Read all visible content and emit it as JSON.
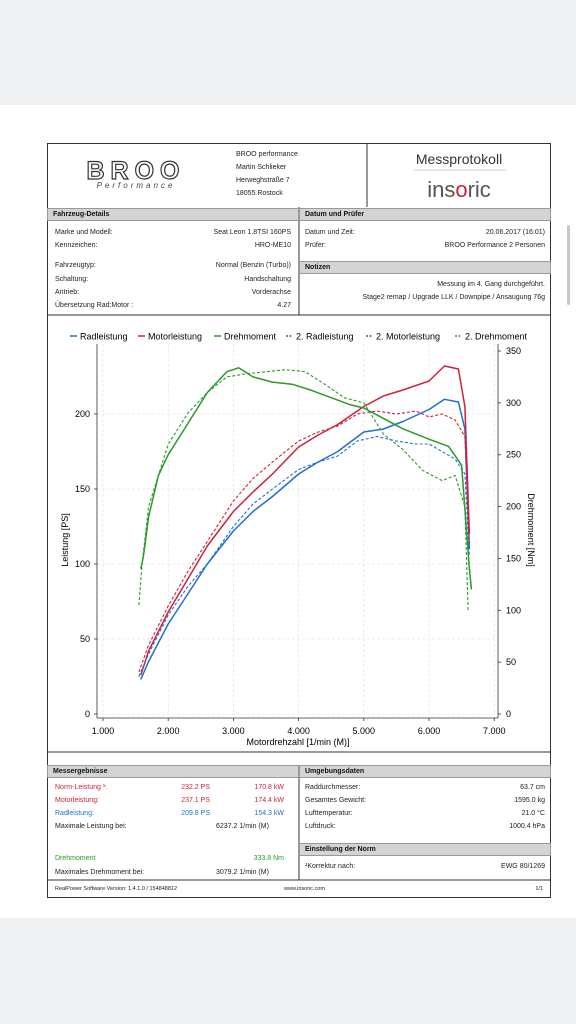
{
  "header": {
    "logo": "BROO",
    "logo_sub": "Performance",
    "address": [
      "BROO performance",
      "Martin Schlieker",
      "Herweghstraße 7",
      "18055 Rostock"
    ],
    "title": "Messprotokoll",
    "brand": [
      "ins",
      "o",
      "ric"
    ]
  },
  "vehicle": {
    "title": "Fahrzeug-Details",
    "rows": [
      [
        "Marke und Modell:",
        "Seat Leon 1.8TSI 160PS"
      ],
      [
        "Kennzeichen:",
        "HRO-ME10"
      ],
      [
        "Fahrzeugtyp:",
        "Normal (Benzin (Turbo))"
      ],
      [
        "Schaltung:",
        "Handschaltung"
      ],
      [
        "Antrieb:",
        "Vorderachse"
      ],
      [
        "Übersetzung Rad:Motor :",
        "4.27"
      ]
    ]
  },
  "test": {
    "title": "Datum und Prüfer",
    "rows": [
      [
        "Datum und Zeit:",
        "20.06.2017 (16:01)"
      ],
      [
        "Prüfer:",
        "BROO Performance 2 Personen"
      ]
    ]
  },
  "notes": {
    "title": "Notizen",
    "lines": [
      "Messung im 4. Gang durchgeführt.",
      "Stage2 remap / Upgrade LLK / Downpipe / Ansaugung 76g"
    ]
  },
  "chart_data": {
    "type": "line",
    "xlabel": "Motordrehzahl [1/min (M)]",
    "ylabel": "Leistung [PS]",
    "y2label": "Drehmoment [Nm]",
    "xlim": [
      908,
      7058
    ],
    "ylim": [
      0,
      242
    ],
    "y2lim": [
      0,
      350
    ],
    "xticks": [
      {
        "value": 1000,
        "label": "1.000"
      },
      {
        "value": 2000,
        "label": "2.000"
      },
      {
        "value": 3000,
        "label": "3.000"
      },
      {
        "value": 4000,
        "label": "4.000"
      },
      {
        "value": 5000,
        "label": "5.000"
      },
      {
        "value": 6000,
        "label": "6.000"
      },
      {
        "value": 7000,
        "label": "7.000"
      }
    ],
    "yticks": [
      0,
      50,
      100,
      150,
      200
    ],
    "y2ticks": [
      0,
      50,
      100,
      150,
      200,
      250,
      300,
      350
    ],
    "grid": true,
    "series": [
      {
        "name": "Radleistung",
        "color": "#1f6fd0",
        "dashed": false,
        "axis": "y",
        "x": [
          1580,
          1700,
          2000,
          2300,
          2600,
          3000,
          3300,
          3600,
          4000,
          4300,
          4600,
          5000,
          5300,
          5600,
          6000,
          6237,
          6450,
          6550,
          6620
        ],
        "values": [
          23,
          35,
          60,
          80,
          100,
          122,
          135,
          145,
          160,
          168,
          175,
          188,
          190,
          195,
          203,
          209.8,
          208,
          190,
          110
        ]
      },
      {
        "name": "Motorleistung",
        "color": "#d0213a",
        "dashed": false,
        "axis": "y",
        "x": [
          1580,
          1700,
          2000,
          2300,
          2600,
          3000,
          3300,
          3600,
          4000,
          4300,
          4600,
          5000,
          5300,
          5600,
          6000,
          6237,
          6450,
          6550,
          6620
        ],
        "values": [
          26,
          42,
          68,
          90,
          112,
          135,
          148,
          160,
          178,
          186,
          193,
          205,
          212,
          216,
          222,
          232,
          230,
          205,
          120
        ]
      },
      {
        "name": "Drehmoment",
        "color": "#2a9a2a",
        "dashed": false,
        "axis": "y2",
        "x": [
          1580,
          1620,
          1700,
          1850,
          2000,
          2300,
          2600,
          2900,
          3079,
          3300,
          3600,
          3900,
          4200,
          4500,
          4800,
          5000,
          5300,
          5600,
          6000,
          6300,
          6500,
          6620,
          6650
        ],
        "values": [
          140,
          152,
          190,
          230,
          250,
          280,
          310,
          330,
          333.8,
          325,
          320,
          318,
          312,
          305,
          298,
          295,
          285,
          275,
          265,
          258,
          240,
          140,
          120
        ]
      },
      {
        "name": "2. Radleistung",
        "color": "#1f6fd0",
        "dashed": true,
        "axis": "y",
        "x": [
          1550,
          1700,
          2000,
          2300,
          2600,
          3000,
          3300,
          3600,
          4000,
          4300,
          4600,
          4900,
          5200,
          5500,
          5800,
          6000,
          6200,
          6400,
          6550,
          6620
        ],
        "values": [
          25,
          40,
          66,
          85,
          100,
          125,
          140,
          150,
          163,
          168,
          172,
          182,
          185,
          182,
          180,
          180,
          175,
          170,
          160,
          105
        ]
      },
      {
        "name": "2. Motorleistung",
        "color": "#d0213a",
        "dashed": true,
        "axis": "y",
        "x": [
          1550,
          1700,
          2000,
          2300,
          2600,
          3000,
          3300,
          3600,
          4000,
          4300,
          4600,
          4900,
          5200,
          5500,
          5800,
          6000,
          6200,
          6400,
          6550,
          6620
        ],
        "values": [
          28,
          46,
          72,
          95,
          115,
          142,
          157,
          168,
          182,
          188,
          192,
          200,
          202,
          200,
          202,
          198,
          200,
          196,
          185,
          112
        ]
      },
      {
        "name": "2. Drehmoment",
        "color": "#2a9a2a",
        "dashed": true,
        "axis": "y2",
        "x": [
          1550,
          1600,
          1700,
          2000,
          2300,
          2600,
          2900,
          3200,
          3500,
          3800,
          4100,
          4400,
          4700,
          5000,
          5300,
          5600,
          5900,
          6200,
          6400,
          6550,
          6600
        ],
        "values": [
          105,
          145,
          200,
          260,
          290,
          310,
          325,
          328,
          330,
          332,
          330,
          318,
          305,
          300,
          270,
          255,
          235,
          225,
          230,
          200,
          100
        ]
      }
    ]
  },
  "results": {
    "title": "Messergebnisse",
    "rows": [
      [
        "Norm-Leistung ¹:",
        "232.2 PS",
        "170.8 kW"
      ],
      [
        "Motorleistung:",
        "237.1 PS",
        "174.4 kW"
      ],
      [
        "Radleistung:",
        "209.8 PS",
        "154.3 kW"
      ],
      [
        "Maximale Leistung bei:",
        "6237.2 1/min (M)"
      ],
      [
        "Drehmoment",
        "333.8 Nm"
      ],
      [
        "Maximales Drehmoment bei:",
        "3079.2 1/min (M)"
      ]
    ]
  },
  "environment": {
    "title": "Umgebungsdaten",
    "rows": [
      [
        "Raddurchmesser:",
        "63.7 cm"
      ],
      [
        "Gesamtes Gewicht:",
        "1595.0 kg"
      ],
      [
        "Lufttemperatur:",
        "21.0 °C"
      ],
      [
        "Luftdruck:",
        "1000.4 hPa"
      ]
    ]
  },
  "norm": {
    "title": "Einstellung der Norm",
    "rows": [
      [
        "¹Korrektur nach:",
        "EWG 80/1269"
      ]
    ]
  },
  "footer": {
    "software": "RealPower Software Version: 1.4.1.0 / 154848812",
    "url": "www.insoric.com",
    "page": "1/1"
  }
}
